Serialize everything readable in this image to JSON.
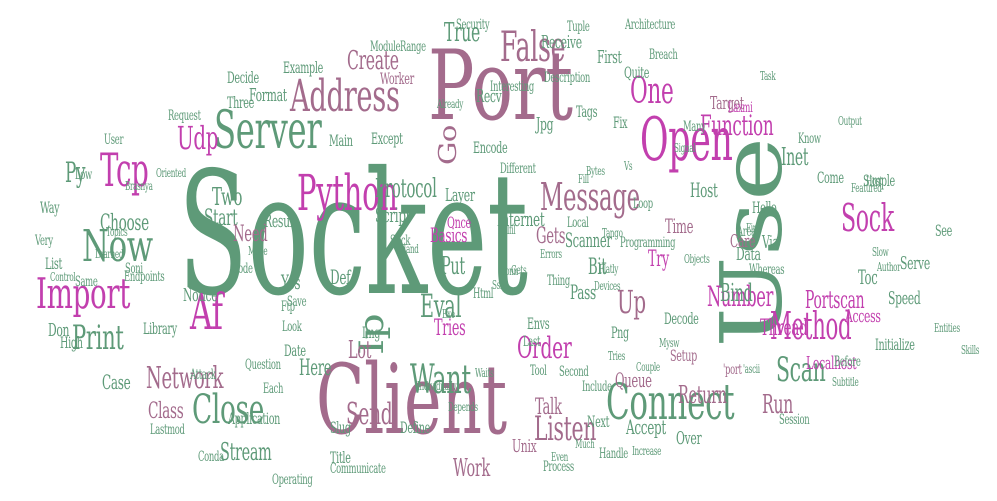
{
  "palette": {
    "green": "#5e9a78",
    "mauve": "#a36b8c",
    "magenta": "#c23fae",
    "sage": "#8fb59c",
    "dusty": "#b88aa5"
  },
  "words": [
    {
      "t": "Socket",
      "c": "green",
      "v": 0
    },
    {
      "t": "Port",
      "c": "mauve",
      "v": 0
    },
    {
      "t": "Client",
      "c": "mauve",
      "v": 0
    },
    {
      "t": "Use",
      "c": "green",
      "v": 1
    },
    {
      "t": "Connect",
      "c": "green",
      "v": 0
    },
    {
      "t": "Python",
      "c": "magenta",
      "v": 0
    },
    {
      "t": "Server",
      "c": "green",
      "v": 0
    },
    {
      "t": "Open",
      "c": "magenta",
      "v": 0
    },
    {
      "t": "Now",
      "c": "green",
      "v": 0
    },
    {
      "t": "Import",
      "c": "magenta",
      "v": 0
    },
    {
      "t": "Address",
      "c": "mauve",
      "v": 0
    },
    {
      "t": "Message",
      "c": "mauve",
      "v": 0
    },
    {
      "t": "Method",
      "c": "magenta",
      "v": 0
    },
    {
      "t": "Want",
      "c": "green",
      "v": 0
    },
    {
      "t": "Close",
      "c": "green",
      "v": 0
    },
    {
      "t": "Network",
      "c": "mauve",
      "v": 0
    },
    {
      "t": "Print",
      "c": "green",
      "v": 0
    },
    {
      "t": "False",
      "c": "mauve",
      "v": 0
    },
    {
      "t": "One",
      "c": "magenta",
      "v": 0
    },
    {
      "t": "Sock",
      "c": "magenta",
      "v": 0
    },
    {
      "t": "Tcp",
      "c": "magenta",
      "v": 0
    },
    {
      "t": "Af",
      "c": "magenta",
      "v": 0
    },
    {
      "t": "Ip",
      "c": "green",
      "v": 1
    },
    {
      "t": "Scan",
      "c": "green",
      "v": 0
    },
    {
      "t": "Listen",
      "c": "mauve",
      "v": 0
    },
    {
      "t": "Udp",
      "c": "magenta",
      "v": 0
    },
    {
      "t": "Eval",
      "c": "green",
      "v": 0
    },
    {
      "t": "Protocol",
      "c": "green",
      "v": 0
    },
    {
      "t": "Function",
      "c": "magenta",
      "v": 0
    },
    {
      "t": "Send",
      "c": "mauve",
      "v": 0
    },
    {
      "t": "Go",
      "c": "mauve",
      "v": 1
    },
    {
      "t": "Order",
      "c": "magenta",
      "v": 0
    },
    {
      "t": "Inet",
      "c": "green",
      "v": 0
    },
    {
      "t": "True",
      "c": "green",
      "v": 0
    },
    {
      "t": "Create",
      "c": "mauve",
      "v": 0
    },
    {
      "t": "Up",
      "c": "mauve",
      "v": 0
    },
    {
      "t": "Py",
      "c": "green",
      "v": 0
    },
    {
      "t": "Stream",
      "c": "green",
      "v": 0
    },
    {
      "t": "Number",
      "c": "magenta",
      "v": 0
    },
    {
      "t": "Return",
      "c": "mauve",
      "v": 0
    },
    {
      "t": "Bind",
      "c": "green",
      "v": 0
    },
    {
      "t": "Thread",
      "c": "magenta",
      "v": 0
    },
    {
      "t": "Portscan",
      "c": "magenta",
      "v": 0
    },
    {
      "t": "Choose",
      "c": "green",
      "v": 0
    },
    {
      "t": "Start",
      "c": "green",
      "v": 0
    },
    {
      "t": "Two",
      "c": "green",
      "v": 0
    },
    {
      "t": "Need",
      "c": "mauve",
      "v": 0
    },
    {
      "t": "Internet",
      "c": "green",
      "v": 0
    },
    {
      "t": "Scanner",
      "c": "green",
      "v": 0
    },
    {
      "t": "Host",
      "c": "green",
      "v": 0
    },
    {
      "t": "Time",
      "c": "mauve",
      "v": 0
    },
    {
      "t": "Care",
      "c": "mauve",
      "v": 0
    },
    {
      "t": "Target",
      "c": "mauve",
      "v": 0
    },
    {
      "t": "Quite",
      "c": "green",
      "v": 0
    },
    {
      "t": "First",
      "c": "green",
      "v": 0
    },
    {
      "t": "Localhost",
      "c": "magenta",
      "v": 0
    },
    {
      "t": "Access",
      "c": "magenta",
      "v": 0
    },
    {
      "t": "Toc",
      "c": "green",
      "v": 0
    },
    {
      "t": "Speed",
      "c": "green",
      "v": 0
    },
    {
      "t": "Via",
      "c": "green",
      "v": 0
    },
    {
      "t": "Data",
      "c": "green",
      "v": 0
    },
    {
      "t": "Queue",
      "c": "mauve",
      "v": 0
    },
    {
      "t": "Accept",
      "c": "green",
      "v": 0
    },
    {
      "t": "Over",
      "c": "green",
      "v": 0
    },
    {
      "t": "Run",
      "c": "mauve",
      "v": 0
    },
    {
      "t": "Work",
      "c": "mauve",
      "v": 0
    },
    {
      "t": "Unix",
      "c": "mauve",
      "v": 0
    },
    {
      "t": "Talk",
      "c": "mauve",
      "v": 0
    },
    {
      "t": "Class",
      "c": "mauve",
      "v": 0
    },
    {
      "t": "Case",
      "c": "green",
      "v": 0
    },
    {
      "t": "Here",
      "c": "green",
      "v": 0
    },
    {
      "t": "Lot",
      "c": "mauve",
      "v": 0
    },
    {
      "t": "Put",
      "c": "green",
      "v": 0
    },
    {
      "t": "Tries",
      "c": "magenta",
      "v": 0
    },
    {
      "t": "Gets",
      "c": "mauve",
      "v": 0
    },
    {
      "t": "Pass",
      "c": "green",
      "v": 0
    },
    {
      "t": "Bit",
      "c": "green",
      "v": 0
    },
    {
      "t": "Try",
      "c": "magenta",
      "v": 0
    },
    {
      "t": "Def",
      "c": "green",
      "v": 0
    },
    {
      "t": "Yes",
      "c": "green",
      "v": 0
    },
    {
      "t": "Basics",
      "c": "magenta",
      "v": 0
    },
    {
      "t": "Script",
      "c": "green",
      "v": 0
    },
    {
      "t": "Result",
      "c": "green",
      "v": 0
    },
    {
      "t": "Layer",
      "c": "green",
      "v": 0
    },
    {
      "t": "Once",
      "c": "magenta",
      "v": 0
    },
    {
      "t": "Encode",
      "c": "green",
      "v": 0
    },
    {
      "t": "Recv",
      "c": "green",
      "v": 0
    },
    {
      "t": "Jpg",
      "c": "green",
      "v": 0
    },
    {
      "t": "Fix",
      "c": "green",
      "v": 0
    },
    {
      "t": "Tags",
      "c": "green",
      "v": 0
    },
    {
      "t": "Receive",
      "c": "green",
      "v": 0
    },
    {
      "t": "Format",
      "c": "green",
      "v": 0
    },
    {
      "t": "Example",
      "c": "green",
      "v": 0
    },
    {
      "t": "Decide",
      "c": "green",
      "v": 0
    },
    {
      "t": "Three",
      "c": "green",
      "v": 0
    },
    {
      "t": "Main",
      "c": "green",
      "v": 0
    },
    {
      "t": "Except",
      "c": "green",
      "v": 0
    },
    {
      "t": "Notice",
      "c": "green",
      "v": 0
    },
    {
      "t": "Library",
      "c": "green",
      "v": 0
    },
    {
      "t": "Don",
      "c": "green",
      "v": 0
    },
    {
      "t": "High",
      "c": "green",
      "v": 0
    },
    {
      "t": "List",
      "c": "green",
      "v": 0
    },
    {
      "t": "Very",
      "c": "green",
      "v": 0
    },
    {
      "t": "Way",
      "c": "green",
      "v": 0
    },
    {
      "t": "Low",
      "c": "green",
      "v": 0
    },
    {
      "t": "User",
      "c": "green",
      "v": 0
    },
    {
      "t": "Request",
      "c": "green",
      "v": 0
    },
    {
      "t": "Module",
      "c": "green",
      "v": 0
    },
    {
      "t": "Range",
      "c": "green",
      "v": 0
    },
    {
      "t": "Worker",
      "c": "mauve",
      "v": 0
    },
    {
      "t": "Date",
      "c": "green",
      "v": 0
    },
    {
      "t": "Img",
      "c": "green",
      "v": 0
    },
    {
      "t": "Envs",
      "c": "green",
      "v": 0
    },
    {
      "t": "Png",
      "c": "green",
      "v": 0
    },
    {
      "t": "Decode",
      "c": "green",
      "v": 0
    },
    {
      "t": "Setup",
      "c": "mauve",
      "v": 0
    },
    {
      "t": "Serve",
      "c": "green",
      "v": 0
    },
    {
      "t": "See",
      "c": "green",
      "v": 0
    },
    {
      "t": "Hello",
      "c": "green",
      "v": 0
    },
    {
      "t": "Come",
      "c": "green",
      "v": 0
    },
    {
      "t": "Simple",
      "c": "green",
      "v": 0
    },
    {
      "t": "Initialize",
      "c": "green",
      "v": 0
    },
    {
      "t": "Before",
      "c": "green",
      "v": 0
    },
    {
      "t": "Slug",
      "c": "green",
      "v": 0
    },
    {
      "t": "Title",
      "c": "green",
      "v": 0
    },
    {
      "t": "Define",
      "c": "green",
      "v": 0
    },
    {
      "t": "Communicate",
      "c": "green",
      "v": 0
    },
    {
      "t": "Process",
      "c": "green",
      "v": 0
    },
    {
      "t": "Application",
      "c": "green",
      "v": 0
    },
    {
      "t": "Operating",
      "c": "green",
      "v": 0
    },
    {
      "t": "Conda",
      "c": "green",
      "v": 0
    },
    {
      "t": "Lastmod",
      "c": "green",
      "v": 0
    },
    {
      "t": "Attack",
      "c": "green",
      "v": 0
    },
    {
      "t": "Question",
      "c": "green",
      "v": 0
    },
    {
      "t": "Ftp",
      "c": "green",
      "v": 0
    },
    {
      "t": "Html",
      "c": "green",
      "v": 0
    },
    {
      "t": "Stick",
      "c": "green",
      "v": 0
    },
    {
      "t": "Each",
      "c": "green",
      "v": 0
    },
    {
      "t": "Endpoints",
      "c": "green",
      "v": 0
    },
    {
      "t": "Same",
      "c": "green",
      "v": 0
    },
    {
      "t": "Soni",
      "c": "green",
      "v": 0
    },
    {
      "t": "Code",
      "c": "green",
      "v": 0
    },
    {
      "t": "Save",
      "c": "green",
      "v": 0
    },
    {
      "t": "Look",
      "c": "green",
      "v": 0
    },
    {
      "t": "Next",
      "c": "green",
      "v": 0
    },
    {
      "t": "Second",
      "c": "green",
      "v": 0
    },
    {
      "t": "Tool",
      "c": "green",
      "v": 0
    },
    {
      "t": "Include",
      "c": "green",
      "v": 0
    },
    {
      "t": "Last",
      "c": "green",
      "v": 0
    },
    {
      "t": "Thing",
      "c": "green",
      "v": 0
    },
    {
      "t": "Different",
      "c": "green",
      "v": 0
    },
    {
      "t": "Programming",
      "c": "green",
      "v": 0
    },
    {
      "t": "Description",
      "c": "green",
      "v": 0
    },
    {
      "t": "Interesting",
      "c": "green",
      "v": 0
    },
    {
      "t": "Architecture",
      "c": "green",
      "v": 0
    },
    {
      "t": "Security",
      "c": "green",
      "v": 0
    },
    {
      "t": "Tuple",
      "c": "green",
      "v": 0
    },
    {
      "t": "Breach",
      "c": "green",
      "v": 0
    },
    {
      "t": "Laxmi",
      "c": "magenta",
      "v": 0
    },
    {
      "t": "Task",
      "c": "green",
      "v": 0
    },
    {
      "t": "Output",
      "c": "green",
      "v": 0
    },
    {
      "t": "Know",
      "c": "green",
      "v": 0
    },
    {
      "t": "Area",
      "c": "green",
      "v": 0
    },
    {
      "t": "Find",
      "c": "green",
      "v": 0
    },
    {
      "t": "Whereas",
      "c": "green",
      "v": 0
    },
    {
      "t": "Session",
      "c": "green",
      "v": 0
    },
    {
      "t": "Loop",
      "c": "green",
      "v": 0
    },
    {
      "t": "Many",
      "c": "green",
      "v": 0
    },
    {
      "t": "Local",
      "c": "green",
      "v": 0
    },
    {
      "t": "Bytes",
      "c": "green",
      "v": 0
    },
    {
      "t": "Author",
      "c": "green",
      "v": 0
    },
    {
      "t": "Featured",
      "c": "green",
      "v": 0
    },
    {
      "t": "Host",
      "c": "green",
      "v": 0
    },
    {
      "t": "Slow",
      "c": "green",
      "v": 0
    },
    {
      "t": "'port",
      "c": "mauve",
      "v": 0
    },
    {
      "t": "'ascii",
      "c": "green",
      "v": 0
    },
    {
      "t": "Handle",
      "c": "green",
      "v": 0
    },
    {
      "t": "Even",
      "c": "green",
      "v": 0
    },
    {
      "t": "Much",
      "c": "green",
      "v": 0
    },
    {
      "t": "Increase",
      "c": "green",
      "v": 0
    },
    {
      "t": "Individually",
      "c": "green",
      "v": 0
    },
    {
      "t": "Depends",
      "c": "green",
      "v": 0
    },
    {
      "t": "Waits",
      "c": "green",
      "v": 0
    },
    {
      "t": "Fulfil",
      "c": "green",
      "v": 0
    },
    {
      "t": "Devices",
      "c": "green",
      "v": 0
    },
    {
      "t": "Tango",
      "c": "green",
      "v": 0
    },
    {
      "t": "Flatly",
      "c": "green",
      "v": 0
    },
    {
      "t": "Exe",
      "c": "green",
      "v": 0
    },
    {
      "t": "Ssh",
      "c": "green",
      "v": 0
    },
    {
      "t": "Conn",
      "c": "green",
      "v": 0
    },
    {
      "t": "Tries",
      "c": "green",
      "v": 0
    },
    {
      "t": "Mysw",
      "c": "green",
      "v": 0
    },
    {
      "t": "Couple",
      "c": "green",
      "v": 0
    },
    {
      "t": "Subtitle",
      "c": "green",
      "v": 0
    },
    {
      "t": "Entities",
      "c": "green",
      "v": 0
    },
    {
      "t": "Skills",
      "c": "green",
      "v": 0
    },
    {
      "t": "Brasnya",
      "c": "green",
      "v": 0
    },
    {
      "t": "Oriented",
      "c": "green",
      "v": 0
    },
    {
      "t": "Topics",
      "c": "green",
      "v": 0
    },
    {
      "t": "Learned",
      "c": "green",
      "v": 0
    },
    {
      "t": "Control",
      "c": "green",
      "v": 0
    },
    {
      "t": "Hand",
      "c": "green",
      "v": 0
    },
    {
      "t": "Already",
      "c": "green",
      "v": 0
    },
    {
      "t": "Fill",
      "c": "green",
      "v": 0
    },
    {
      "t": "Mode",
      "c": "green",
      "v": 0
    },
    {
      "t": "Objects",
      "c": "green",
      "v": 0
    },
    {
      "t": "Signal",
      "c": "green",
      "v": 0
    },
    {
      "t": "Errors",
      "c": "green",
      "v": 0
    },
    {
      "t": "Gets",
      "c": "green",
      "v": 0
    },
    {
      "t": "Vs",
      "c": "green",
      "v": 0
    },
    {
      "t": "Reason",
      "c": "green",
      "v": 0
    }
  ]
}
